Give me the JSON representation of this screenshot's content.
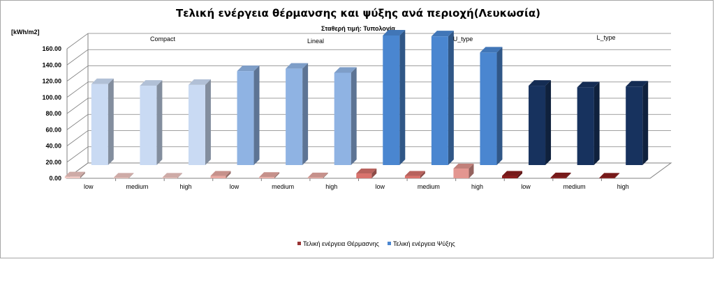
{
  "chart_data": {
    "type": "bar",
    "title": "Τελική ενέργεια θέρμανσης και ψύξης ανά περιοχή(Λευκωσία)",
    "subtitle": "Σταθερή τιμή: Τυπολογία",
    "ylabel": "[kWh/m2]",
    "ylim": [
      0,
      160
    ],
    "yticks": [
      "0.00",
      "20.00",
      "40.00",
      "60.00",
      "80.00",
      "100.00",
      "120.00",
      "140.00",
      "160.00"
    ],
    "categories": [
      "low",
      "medium",
      "high",
      "low",
      "medium",
      "high",
      "low",
      "medium",
      "high",
      "low",
      "medium",
      "high"
    ],
    "groups": [
      "Compact",
      "Lineal",
      "U_type",
      "L_type"
    ],
    "grid": true,
    "legend_position": "bottom",
    "series": [
      {
        "name": "Τελική ενέργεια Θέρμασνης",
        "values": [
          2,
          0.5,
          0.5,
          3,
          1.5,
          1,
          6,
          3,
          12,
          3,
          1,
          0.5
        ],
        "colors": [
          "#f2c9c4",
          "#f2c9c4",
          "#f2c9c4",
          "#e9aaa3",
          "#e9aaa3",
          "#e9aaa3",
          "#d9736d",
          "#d9736d",
          "#e39690",
          "#8b1d1d",
          "#8b1d1d",
          "#8b1d1d"
        ]
      },
      {
        "name": "Τελική ενέργεια Ψύξης",
        "values": [
          100,
          98,
          99,
          116,
          119,
          114,
          160,
          159,
          139,
          98,
          96,
          97
        ],
        "colors": [
          "#c9daf3",
          "#c9daf3",
          "#c9daf3",
          "#8fb3e3",
          "#8fb3e3",
          "#8fb3e3",
          "#4a86d0",
          "#4a86d0",
          "#4a86d0",
          "#17325e",
          "#17325e",
          "#17325e"
        ]
      }
    ],
    "legend_colors": [
      "#993333",
      "#4a86d0"
    ]
  }
}
